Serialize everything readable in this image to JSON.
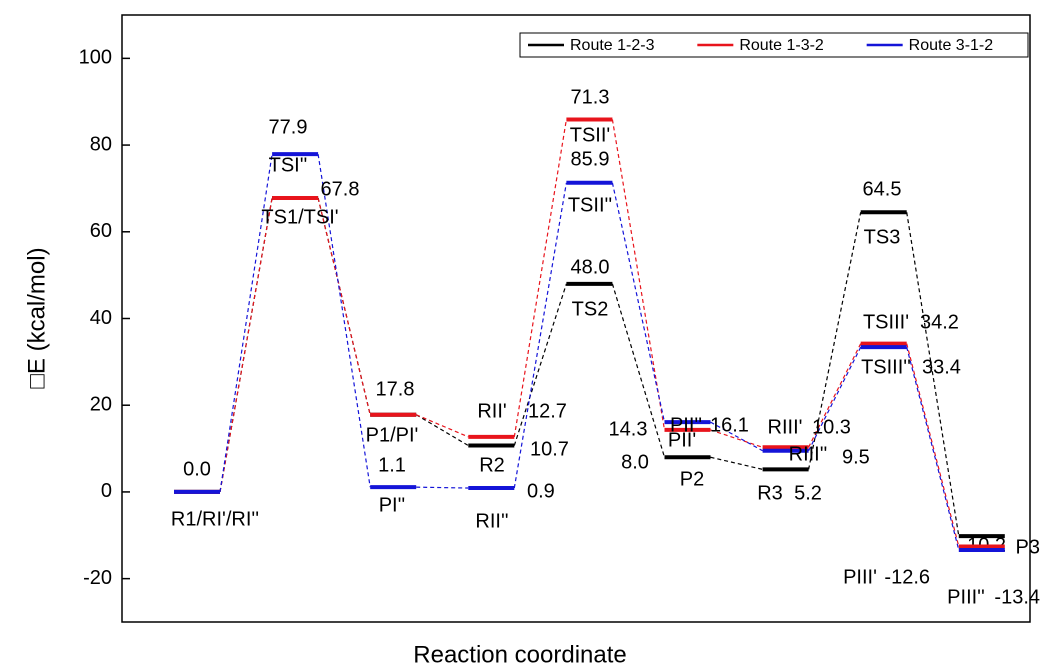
{
  "chart_data": {
    "type": "energy-levels",
    "ylabel": "□E (kcal/mol)",
    "xlabel": "Reaction coordinate",
    "categories": [
      null,
      null,
      null,
      null,
      null,
      null,
      null,
      null,
      null
    ],
    "ylim": [
      -30,
      110
    ],
    "yticks": [
      -20,
      0,
      20,
      40,
      60,
      80,
      100
    ],
    "legend": "upper right",
    "grid": false,
    "series": [
      {
        "name": "Route 1-2-3",
        "color": "#000000",
        "values": [
          0.0,
          67.8,
          17.8,
          10.7,
          48.0,
          8.0,
          5.2,
          64.5,
          -10.2
        ],
        "value_labels": [
          "0.0",
          "67.8",
          "17.8",
          "10.7",
          "48.0",
          "8.0",
          "5.2",
          "64.5",
          "-10.2"
        ],
        "level_names": [
          "R1/RI'/RI''",
          "TS1/TSI'",
          "P1/PI'",
          "R2",
          "TS2",
          "P2",
          "R3",
          "TS3",
          "P3"
        ]
      },
      {
        "name": "Route 1-3-2",
        "color": "#e8141c",
        "values": [
          0.0,
          67.8,
          17.8,
          12.7,
          85.9,
          14.3,
          10.3,
          34.2,
          -12.6
        ],
        "value_labels": [
          null,
          null,
          null,
          "12.7",
          "85.9",
          "14.3",
          "10.3",
          "34.2",
          "-12.6"
        ],
        "level_names": [
          null,
          null,
          null,
          "RII'",
          "TSII'",
          "PII'",
          "RIII'",
          "TSIII'",
          "PIII'"
        ]
      },
      {
        "name": "Route 3-1-2",
        "color": "#1414d8",
        "values": [
          0.0,
          77.9,
          1.1,
          0.9,
          71.3,
          16.1,
          9.5,
          33.4,
          -13.4
        ],
        "value_labels": [
          null,
          "77.9",
          "1.1",
          "0.9",
          "71.3",
          "16.1",
          "9.5",
          "33.4",
          "-13.4"
        ],
        "level_names": [
          null,
          "TSI''",
          "PI''",
          "RII''",
          "TSII''",
          "PII''",
          "RIII''",
          "TSIII''",
          "PIII''"
        ]
      }
    ]
  }
}
